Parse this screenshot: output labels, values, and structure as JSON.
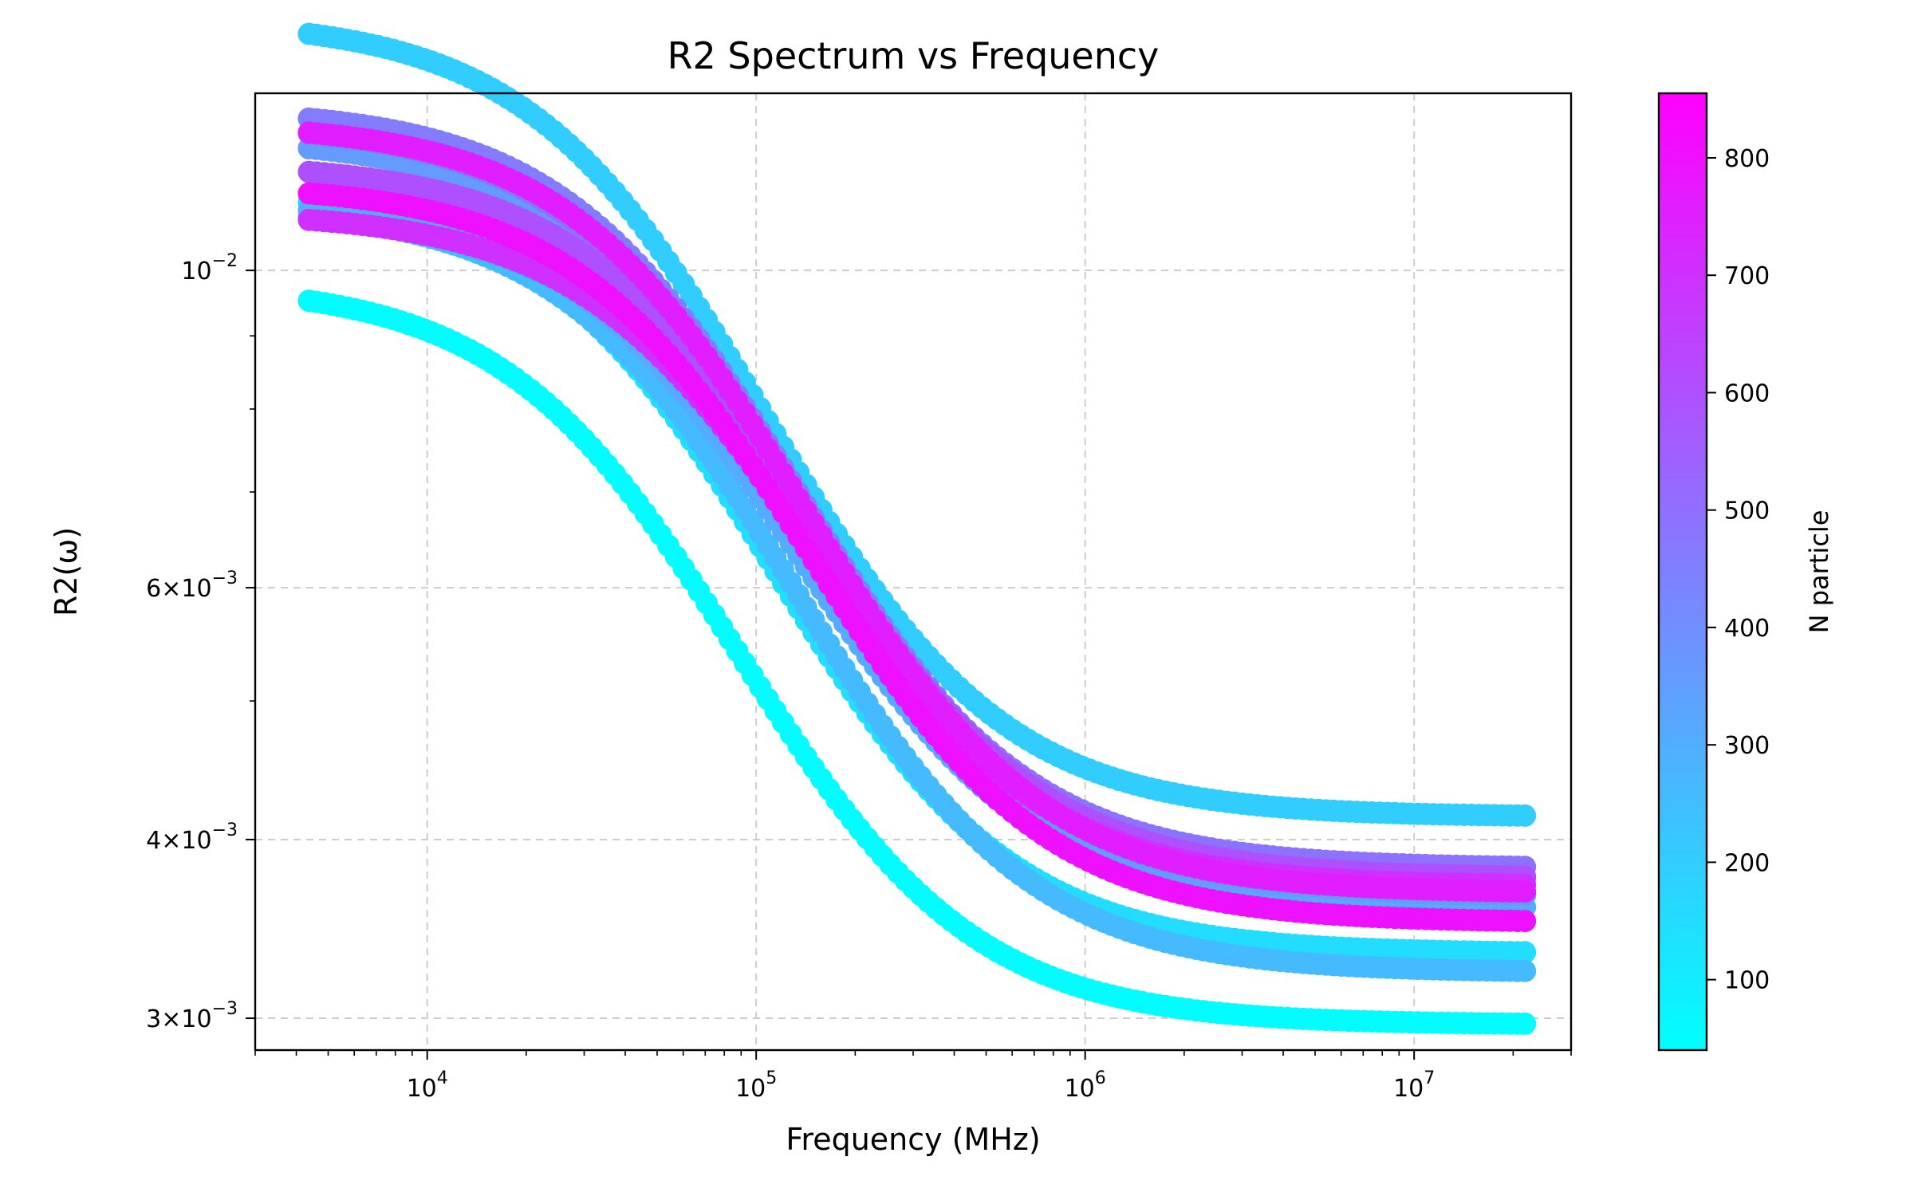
{
  "chart_data": {
    "type": "scatter",
    "title": "R2 Spectrum vs Frequency",
    "xlabel": "Frequency (MHz)",
    "ylabel": "R2(ω)",
    "xscale": "log",
    "yscale": "log",
    "xlim": [
      3000,
      30000000
    ],
    "ylim": [
      0.00285,
      0.0133
    ],
    "grid": true,
    "x_ticks": [
      {
        "value": 10000,
        "base": "10",
        "exp": "4"
      },
      {
        "value": 100000,
        "base": "10",
        "exp": "5"
      },
      {
        "value": 1000000,
        "base": "10",
        "exp": "6"
      },
      {
        "value": 10000000,
        "base": "10",
        "exp": "7"
      }
    ],
    "y_ticks": [
      {
        "value": 0.003,
        "mant": "3",
        "base": "10",
        "exp": "−3"
      },
      {
        "value": 0.004,
        "mant": "4",
        "base": "10",
        "exp": "−3"
      },
      {
        "value": 0.006,
        "mant": "6",
        "base": "10",
        "exp": "−3"
      },
      {
        "value": 0.01,
        "mant": "",
        "base": "10",
        "exp": "−2"
      }
    ],
    "colorbar": {
      "label": "N particle",
      "range": [
        40,
        855
      ],
      "ticks": [
        "100",
        "200",
        "300",
        "400",
        "500",
        "600",
        "700",
        "800"
      ],
      "colormap": [
        "#00ffff",
        "#ff00ff"
      ]
    },
    "curve_model": "R2 = plateau + (peak - plateau) / (1 + (f / corner)^1.25)",
    "series": [
      {
        "n_particle": 50,
        "peak": 0.0098,
        "plateau": 0.00297,
        "corner": 55000
      },
      {
        "n_particle": 150,
        "peak": 0.0114,
        "plateau": 0.00333,
        "corner": 70000
      },
      {
        "n_particle": 200,
        "peak": 0.015,
        "plateau": 0.00415,
        "corner": 64000
      },
      {
        "n_particle": 260,
        "peak": 0.0111,
        "plateau": 0.00323,
        "corner": 80000
      },
      {
        "n_particle": 310,
        "peak": 0.0112,
        "plateau": 0.00358,
        "corner": 85000
      },
      {
        "n_particle": 360,
        "peak": 0.0124,
        "plateau": 0.00365,
        "corner": 80000
      },
      {
        "n_particle": 460,
        "peak": 0.013,
        "plateau": 0.00375,
        "corner": 82000
      },
      {
        "n_particle": 490,
        "peak": 0.0127,
        "plateau": 0.00382,
        "corner": 80000
      },
      {
        "n_particle": 600,
        "peak": 0.0119,
        "plateau": 0.00376,
        "corner": 90000
      },
      {
        "n_particle": 700,
        "peak": 0.011,
        "plateau": 0.00371,
        "corner": 95000
      },
      {
        "n_particle": 760,
        "peak": 0.0127,
        "plateau": 0.00367,
        "corner": 85000
      },
      {
        "n_particle": 800,
        "peak": 0.0115,
        "plateau": 0.0035,
        "corner": 90000
      }
    ],
    "x_points": "4370 MHz to 21730000 MHz, 160 log-spaced points per series"
  }
}
